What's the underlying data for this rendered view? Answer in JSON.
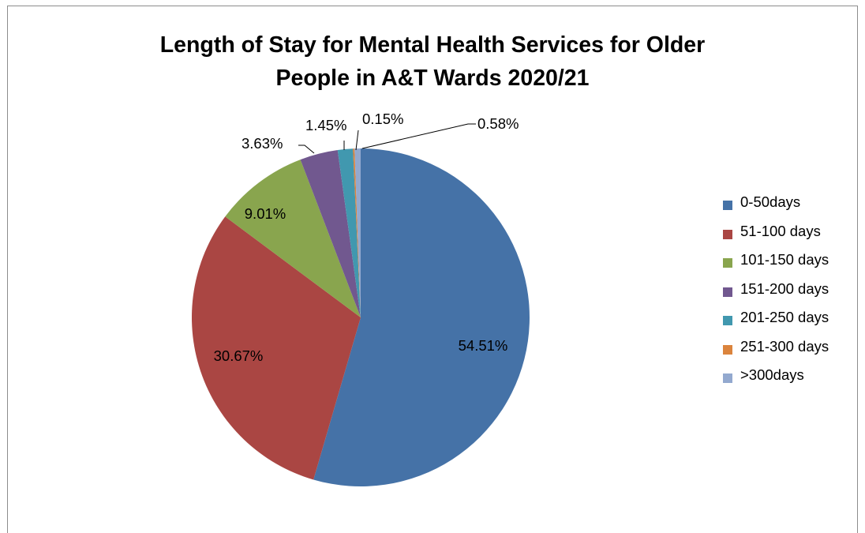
{
  "chart_data": {
    "type": "pie",
    "title_lines": [
      "Length of Stay for  Mental Health Services for Older",
      "People in A&T Wards 2020/21"
    ],
    "legend_position": "right",
    "categories": [
      "0-50days",
      "51-100 days",
      "101-150 days",
      "151-200 days",
      "201-250 days",
      "251-300 days",
      ">300days"
    ],
    "values": [
      54.51,
      30.67,
      9.01,
      3.63,
      1.45,
      0.15,
      0.58
    ],
    "value_labels": [
      "54.51%",
      "30.67%",
      "9.01%",
      "3.63%",
      "1.45%",
      "0.15%",
      "0.58%"
    ],
    "colors": [
      "#4572a7",
      "#aa4643",
      "#89a54e",
      "#71588f",
      "#4198af",
      "#db843d",
      "#93a9cf"
    ]
  }
}
